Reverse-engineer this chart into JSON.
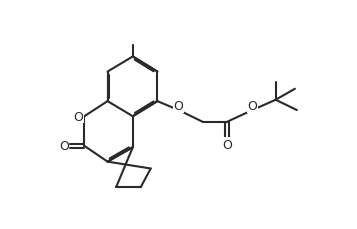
{
  "bg_color": "#ffffff",
  "line_color": "#2a2a2a",
  "line_width": 1.5,
  "figsize": [
    3.57,
    2.3
  ],
  "dpi": 100,
  "xlim": [
    -0.3,
    7.8
  ],
  "ylim": [
    -0.2,
    5.4
  ]
}
